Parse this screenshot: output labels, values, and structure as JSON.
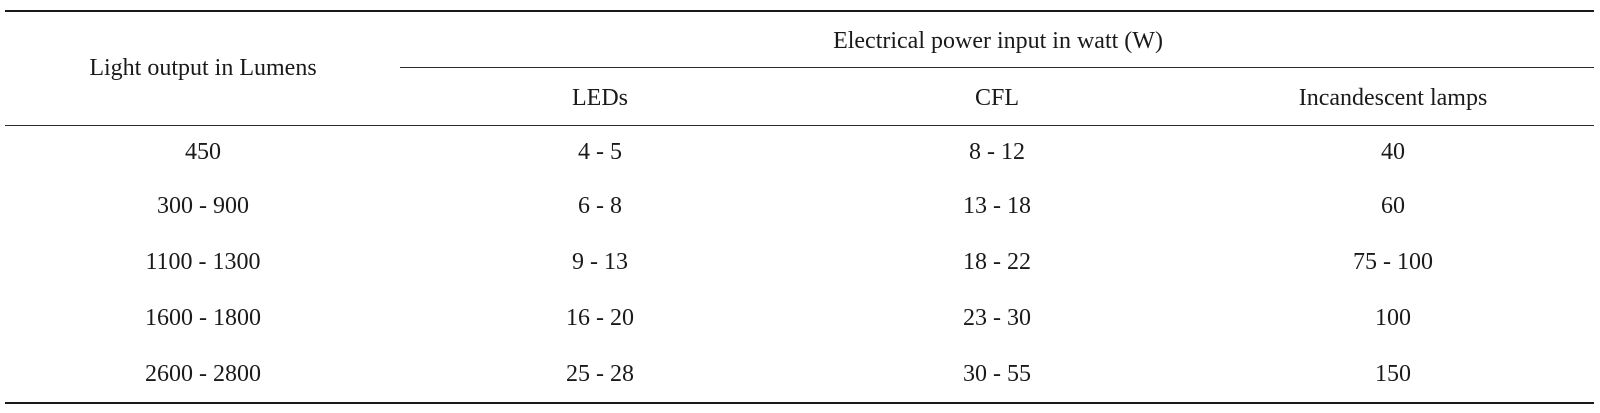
{
  "table": {
    "row_header_label": "Light output in Lumens",
    "group_header_label": "Electrical power input in watt (W)",
    "columns": [
      "LEDs",
      "CFL",
      "Incandescent lamps"
    ],
    "rows": [
      {
        "lumens": "450",
        "cells": [
          "4 - 5",
          "8 - 12",
          "40"
        ]
      },
      {
        "lumens": "300 - 900",
        "cells": [
          "6 - 8",
          "13 - 18",
          "60"
        ]
      },
      {
        "lumens": "1100 - 1300",
        "cells": [
          "9 - 13",
          "18 - 22",
          "75 - 100"
        ]
      },
      {
        "lumens": "1600 - 1800",
        "cells": [
          "16 - 20",
          "23 - 30",
          "100"
        ]
      },
      {
        "lumens": "2600 - 2800",
        "cells": [
          "25 - 28",
          "30 - 55",
          "150"
        ]
      }
    ]
  }
}
